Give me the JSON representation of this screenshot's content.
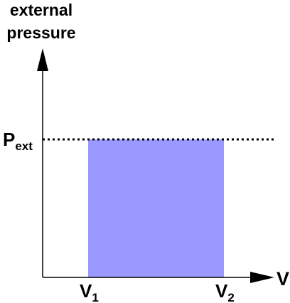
{
  "diagram": {
    "type": "pv-work-diagram",
    "y_axis_label_line1": "external",
    "y_axis_label_line2": "pressure",
    "x_axis_label": "V",
    "pressure_label_main": "P",
    "pressure_label_sub": "ext",
    "v1_label_main": "V",
    "v1_label_sub": "1",
    "v2_label_main": "V",
    "v2_label_sub": "2",
    "colors": {
      "work_area_fill": "#9999FF",
      "axis": "#000000",
      "background": "#FFFFFF"
    },
    "pressure_line_style": "dotted",
    "shaded_region": "rectangle between V1 and V2 from the V axis up to Pext"
  }
}
